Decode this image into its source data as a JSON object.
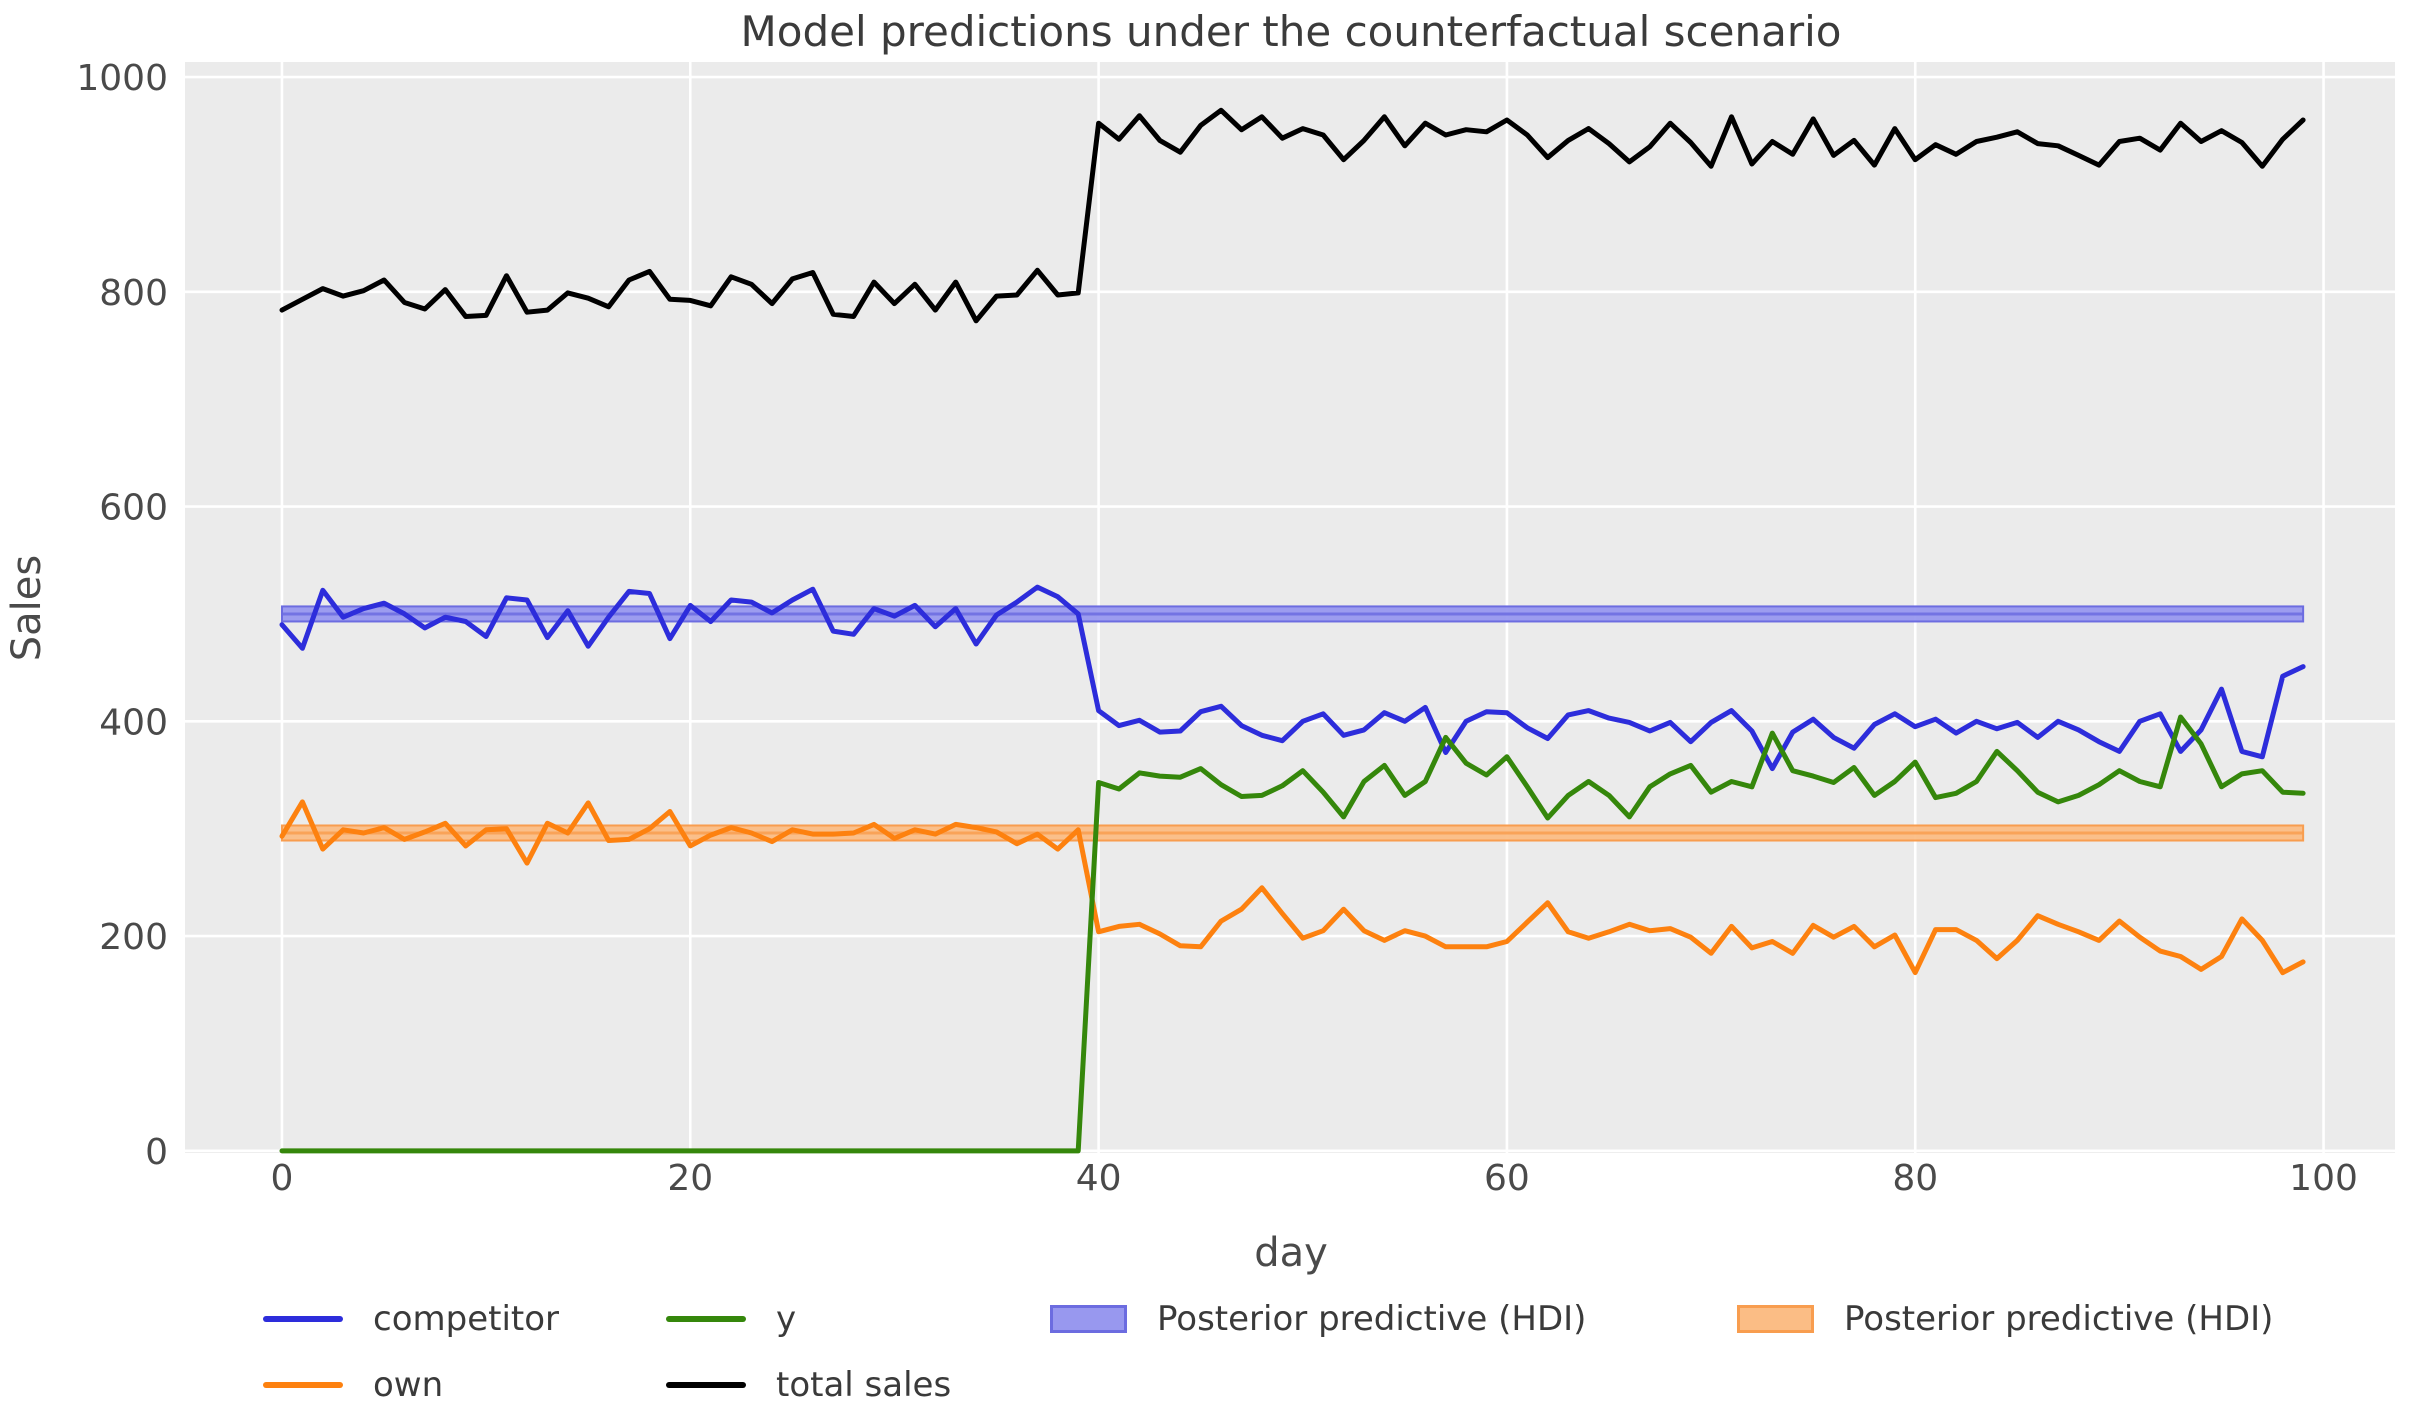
{
  "figure": {
    "title": "Model predictions under the counterfactual scenario",
    "xlabel": "day",
    "ylabel": "Sales"
  },
  "palette": {
    "plot_bg": "#ebebeb",
    "grid": "#ffffff",
    "tick_text": "#4a4a4a",
    "title_text": "#3b3b3b",
    "legend_text": "#3a3a3a",
    "competitor_blue": "#2d2ddb",
    "own_orange": "#fd810f",
    "y_green": "#35870b",
    "total_black": "#000000",
    "hdi_blue_fill": "#9898ef",
    "hdi_blue_edge": "#6c6ce0",
    "hdi_orange_fill": "#fbbd85",
    "hdi_orange_edge": "#f89d4f"
  },
  "legend": {
    "items": [
      {
        "label": "competitor",
        "type": "line",
        "color": "#2d2ddb"
      },
      {
        "label": "own",
        "type": "line",
        "color": "#fd810f"
      },
      {
        "label": "y",
        "type": "line",
        "color": "#35870b"
      },
      {
        "label": "total sales",
        "type": "line",
        "color": "#000000"
      },
      {
        "label": "Posterior predictive (HDI)",
        "type": "patch",
        "fill": "#9898ef",
        "edge": "#6c6ce0"
      },
      {
        "label": "Posterior predictive (HDI)",
        "type": "patch",
        "fill": "#fbbd85",
        "edge": "#f89d4f"
      }
    ]
  },
  "chart_data": {
    "type": "line",
    "title": "Model predictions under the counterfactual scenario",
    "xlabel": "day",
    "ylabel": "Sales",
    "x_start": 0,
    "x_step": 1,
    "n_points": 100,
    "xlim": [
      -4.75,
      103.5
    ],
    "ylim": [
      -2,
      1014
    ],
    "xticks": [
      0,
      20,
      40,
      60,
      80,
      100
    ],
    "yticks": [
      0,
      200,
      400,
      600,
      800,
      1000
    ],
    "grid": true,
    "legend_position": "below",
    "intervention_day": 40,
    "series": [
      {
        "name": "competitor",
        "color": "#2d2ddb",
        "values": [
          490,
          468,
          522,
          497,
          505,
          510,
          500,
          487,
          497,
          493,
          479,
          515,
          513,
          478,
          503,
          470,
          497,
          521,
          519,
          477,
          508,
          493,
          513,
          511,
          501,
          513,
          523,
          484,
          481,
          505,
          498,
          508,
          488,
          505,
          472,
          499,
          511,
          525,
          516,
          500,
          410,
          396,
          401,
          390,
          391,
          409,
          414,
          396,
          387,
          382,
          400,
          407,
          387,
          392,
          408,
          400,
          413,
          371,
          400,
          409,
          408,
          394,
          384,
          406,
          410,
          403,
          399,
          391,
          399,
          381,
          399,
          410,
          391,
          356,
          390,
          402,
          385,
          375,
          397,
          407,
          395,
          402,
          389,
          400,
          393,
          399,
          385,
          400,
          392,
          381,
          372,
          400,
          407,
          372,
          392,
          430,
          372,
          367,
          442,
          451
        ]
      },
      {
        "name": "own",
        "color": "#fd810f",
        "values": [
          293,
          325,
          281,
          299,
          296,
          301,
          290,
          297,
          305,
          284,
          299,
          300,
          268,
          305,
          296,
          324,
          289,
          290,
          300,
          316,
          284,
          294,
          301,
          296,
          288,
          299,
          295,
          295,
          296,
          304,
          291,
          299,
          295,
          304,
          301,
          297,
          286,
          295,
          281,
          299,
          204,
          209,
          211,
          202,
          191,
          190,
          214,
          225,
          245,
          221,
          198,
          205,
          225,
          205,
          196,
          205,
          200,
          190,
          190,
          190,
          195,
          213,
          231,
          204,
          198,
          204,
          211,
          205,
          207,
          199,
          184,
          209,
          189,
          195,
          184,
          210,
          199,
          209,
          190,
          201,
          166,
          206,
          206,
          196,
          179,
          196,
          219,
          211,
          204,
          196,
          214,
          199,
          186,
          181,
          169,
          181,
          216,
          196,
          166,
          176
        ]
      },
      {
        "name": "y",
        "color": "#35870b",
        "values": [
          0,
          0,
          0,
          0,
          0,
          0,
          0,
          0,
          0,
          0,
          0,
          0,
          0,
          0,
          0,
          0,
          0,
          0,
          0,
          0,
          0,
          0,
          0,
          0,
          0,
          0,
          0,
          0,
          0,
          0,
          0,
          0,
          0,
          0,
          0,
          0,
          0,
          0,
          0,
          0,
          343,
          337,
          352,
          349,
          348,
          356,
          341,
          330,
          331,
          340,
          354,
          334,
          311,
          344,
          359,
          331,
          344,
          385,
          361,
          350,
          367,
          339,
          310,
          331,
          344,
          331,
          311,
          339,
          351,
          359,
          334,
          344,
          339,
          389,
          354,
          349,
          343,
          357,
          331,
          344,
          362,
          329,
          333,
          344,
          372,
          354,
          334,
          325,
          331,
          341,
          354,
          344,
          339,
          404,
          379,
          339,
          351,
          354,
          334,
          333
        ]
      },
      {
        "name": "total sales",
        "color": "#000000",
        "values": [
          783,
          793,
          803,
          796,
          801,
          811,
          790,
          784,
          802,
          777,
          778,
          815,
          781,
          783,
          799,
          794,
          786,
          811,
          819,
          793,
          792,
          787,
          814,
          807,
          789,
          812,
          818,
          779,
          777,
          809,
          789,
          807,
          783,
          809,
          773,
          796,
          797,
          820,
          797,
          799,
          957,
          942,
          964,
          941,
          930,
          955,
          969,
          951,
          963,
          943,
          952,
          946,
          923,
          941,
          963,
          936,
          957,
          946,
          951,
          949,
          960,
          946,
          925,
          941,
          952,
          938,
          921,
          935,
          957,
          939,
          917,
          963,
          919,
          940,
          928,
          961,
          927,
          941,
          918,
          952,
          923,
          937,
          928,
          940,
          944,
          949,
          938,
          936,
          927,
          918,
          940,
          943,
          932,
          957,
          940,
          950,
          939,
          917,
          942,
          960
        ]
      }
    ],
    "bands": [
      {
        "name": "Posterior predictive (HDI)",
        "fill": "#9898ef",
        "edge": "#6c6ce0",
        "lo": 493,
        "hi": 507,
        "mean": 500,
        "x_from": 0,
        "x_to": 99
      },
      {
        "name": "Posterior predictive (HDI)",
        "fill": "#fbbd85",
        "edge": "#f89d4f",
        "lo": 289,
        "hi": 303,
        "mean": 296,
        "x_from": 0,
        "x_to": 99
      }
    ]
  }
}
